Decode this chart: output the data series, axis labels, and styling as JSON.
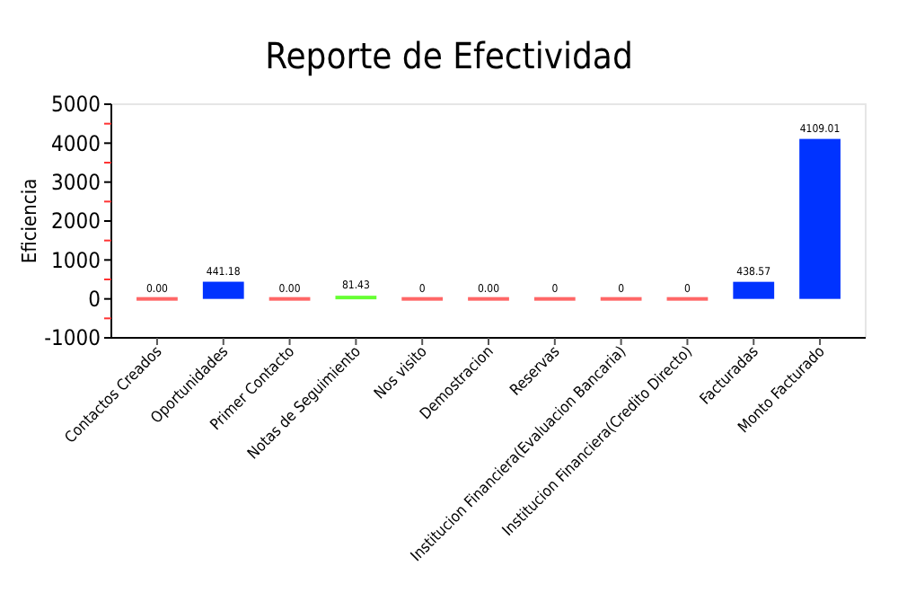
{
  "chart_data": {
    "type": "bar",
    "title": "Reporte de Efectividad",
    "ylabel": "Eficiencia",
    "categories": [
      "Contactos Creados",
      "Oportunidades",
      "Primer Contacto",
      "Notas de Seguimiento",
      "Nos visito",
      "Demostracion",
      "Reservas",
      "Institucion Financiera(Evaluacion Bancaria)",
      "Institucion Financiera(Credito Directo)",
      "Facturadas",
      "Monto Facturado"
    ],
    "values": [
      0,
      441.18,
      0,
      81.43,
      0,
      0,
      0,
      0,
      0,
      438.57,
      4109.01
    ],
    "colors": [
      "#ff6666",
      "#0033ff",
      "#ff6666",
      "#66ff33",
      "#ff6666",
      "#ff6666",
      "#ff6666",
      "#ff6666",
      "#ff6666",
      "#0033ff",
      "#0033ff"
    ],
    "value_labels": [
      "0.00",
      "441.18",
      "0.00",
      "81.43",
      "0",
      "0.00",
      "0",
      "0",
      "0",
      "438.57",
      "4109.01"
    ],
    "ylim": [
      -1000,
      5000
    ],
    "yticks": [
      -1000,
      {
        "value": -500,
        "label": null
      },
      0,
      {
        "value": 500,
        "label": null
      },
      1000,
      {
        "value": 1500,
        "label": null
      },
      2000,
      {
        "value": 2500,
        "label": null
      },
      3000,
      {
        "value": 3500,
        "label": null
      },
      4000,
      {
        "value": 4500,
        "label": null
      },
      5000
    ],
    "grid": false
  }
}
